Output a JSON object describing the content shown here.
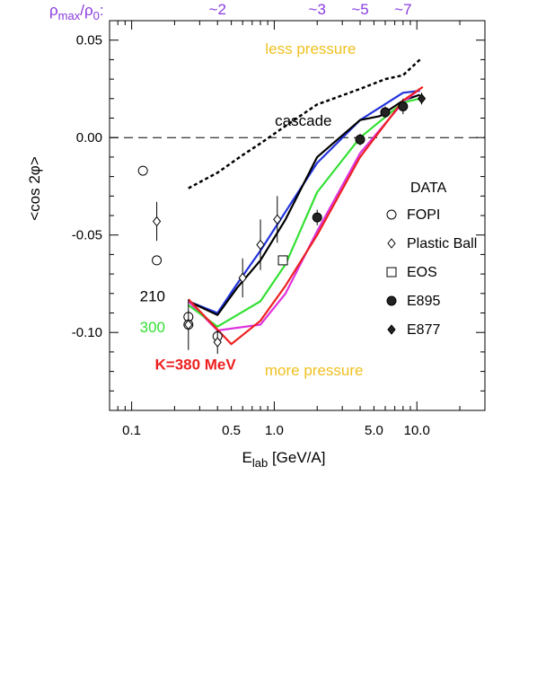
{
  "chart_data": {
    "type": "scatter",
    "ylabel": "<cos 2φ>",
    "xlabel": "E",
    "xlabel_sub": "lab",
    "xlabel_unit": " [GeV/A]",
    "x_scale": "log",
    "xlim": [
      0.07,
      30
    ],
    "ylim": [
      -0.14,
      0.06
    ],
    "x_ticks": [
      {
        "value": 0.1,
        "label": "0.1"
      },
      {
        "value": 0.5,
        "label": "0.5"
      },
      {
        "value": 1.0,
        "label": "1.0"
      },
      {
        "value": 5.0,
        "label": "5.0"
      },
      {
        "value": 10.0,
        "label": "10.0"
      }
    ],
    "y_ticks": [
      {
        "value": 0.05,
        "label": "0.05"
      },
      {
        "value": 0.0,
        "label": "0.00"
      },
      {
        "value": -0.05,
        "label": "-0.05"
      },
      {
        "value": -0.1,
        "label": "-0.10"
      }
    ],
    "top_axis": {
      "label": "ρ",
      "label_sub": "max",
      "label_mid": "/ρ",
      "label_sub2": "0",
      "label_end": ":",
      "color": "#8a3be0",
      "ticks": [
        {
          "value": 0.4,
          "label": "~2"
        },
        {
          "value": 2.0,
          "label": "~3"
        },
        {
          "value": 4.0,
          "label": "~5"
        },
        {
          "value": 8.0,
          "label": "~7"
        }
      ]
    },
    "reference_line": {
      "y": 0.0,
      "style": "dashed"
    },
    "annotations": [
      {
        "text": "less pressure",
        "x": 1.8,
        "y": 0.043,
        "color": "#f0c020"
      },
      {
        "text": "more pressure",
        "x": 1.9,
        "y": -0.122,
        "color": "#f0c020"
      },
      {
        "text": "cascade",
        "x": 1.6,
        "y": 0.006,
        "color": "#000000"
      },
      {
        "text": "210",
        "x": 0.14,
        "y": -0.084,
        "color": "#000000"
      },
      {
        "text": "300",
        "x": 0.14,
        "y": -0.1,
        "color": "#33e033"
      },
      {
        "text": "K=380 MeV",
        "x": 0.28,
        "y": -0.119,
        "color": "#ee2020"
      }
    ],
    "lines": [
      {
        "id": "cascade",
        "style": "dotted",
        "color": "#000000",
        "x": [
          0.25,
          0.4,
          0.6,
          0.8,
          1.2,
          2.0,
          4.0,
          6.0,
          8.0,
          10.5
        ],
        "y": [
          -0.026,
          -0.018,
          -0.009,
          -0.003,
          0.006,
          0.017,
          0.025,
          0.03,
          0.032,
          0.04
        ]
      },
      {
        "id": "blue",
        "style": "solid",
        "color": "#2233dd",
        "x": [
          0.25,
          0.4,
          0.55,
          0.8,
          1.2,
          2.0,
          4.0,
          8.0,
          10.5
        ],
        "y": [
          -0.084,
          -0.09,
          -0.075,
          -0.058,
          -0.038,
          -0.013,
          0.009,
          0.023,
          0.024
        ]
      },
      {
        "id": "210",
        "style": "solid",
        "color": "#000000",
        "x": [
          0.25,
          0.4,
          0.55,
          0.8,
          1.2,
          2.0,
          4.0,
          5.5,
          8.0,
          10.5
        ],
        "y": [
          -0.084,
          -0.091,
          -0.077,
          -0.063,
          -0.042,
          -0.01,
          0.009,
          0.011,
          0.019,
          0.022
        ]
      },
      {
        "id": "magenta",
        "style": "solid",
        "color": "#dd33dd",
        "x": [
          0.25,
          0.4,
          0.8,
          1.2,
          2.0,
          4.0,
          8.0,
          10.5
        ],
        "y": [
          -0.084,
          -0.099,
          -0.096,
          -0.08,
          -0.048,
          -0.008,
          0.018,
          0.025
        ]
      },
      {
        "id": "300",
        "style": "solid",
        "color": "#33e033",
        "x": [
          0.25,
          0.4,
          0.8,
          1.2,
          2.0,
          4.0,
          8.0,
          10.5
        ],
        "y": [
          -0.086,
          -0.097,
          -0.084,
          -0.065,
          -0.028,
          0.0,
          0.018,
          0.02
        ]
      },
      {
        "id": "380",
        "style": "solid",
        "color": "#ee2020",
        "x": [
          0.25,
          0.5,
          0.8,
          1.2,
          2.0,
          4.0,
          8.0,
          11.0
        ],
        "y": [
          -0.083,
          -0.106,
          -0.094,
          -0.076,
          -0.05,
          -0.01,
          0.019,
          0.026
        ]
      }
    ],
    "legend": {
      "title": "DATA",
      "placement": "right",
      "entries": [
        {
          "label": "FOPI",
          "marker": "open-circle"
        },
        {
          "label": "Plastic Ball",
          "marker": "open-diamond"
        },
        {
          "label": "EOS",
          "marker": "open-square"
        },
        {
          "label": "E895",
          "marker": "filled-circle"
        },
        {
          "label": "E877",
          "marker": "filled-diamond"
        }
      ]
    },
    "series": [
      {
        "name": "FOPI",
        "marker": "open-circle",
        "points": [
          {
            "x": 0.12,
            "y": -0.017,
            "err": 0
          },
          {
            "x": 0.15,
            "y": -0.063,
            "err": 0
          },
          {
            "x": 0.25,
            "y": -0.092,
            "err": 0.003
          },
          {
            "x": 0.25,
            "y": -0.096,
            "err": 0.003
          },
          {
            "x": 0.4,
            "y": -0.102,
            "err": 0.003
          }
        ]
      },
      {
        "name": "Plastic Ball",
        "marker": "open-diamond",
        "points": [
          {
            "x": 0.15,
            "y": -0.043,
            "err": 0.01
          },
          {
            "x": 0.25,
            "y": -0.096,
            "err": 0.013
          },
          {
            "x": 0.4,
            "y": -0.105,
            "err": 0.006
          },
          {
            "x": 0.6,
            "y": -0.072,
            "err": 0.01
          },
          {
            "x": 0.8,
            "y": -0.055,
            "err": 0.013
          },
          {
            "x": 1.05,
            "y": -0.042,
            "err": 0.012
          }
        ]
      },
      {
        "name": "EOS",
        "marker": "open-square",
        "points": [
          {
            "x": 1.15,
            "y": -0.063,
            "err": 0
          }
        ]
      },
      {
        "name": "E895",
        "marker": "filled-circle",
        "points": [
          {
            "x": 2.0,
            "y": -0.041,
            "err": 0.004
          },
          {
            "x": 4.0,
            "y": -0.001,
            "err": 0.003
          },
          {
            "x": 6.0,
            "y": 0.013,
            "err": 0.003
          },
          {
            "x": 8.0,
            "y": 0.016,
            "err": 0.004
          }
        ]
      },
      {
        "name": "E877",
        "marker": "filled-diamond",
        "points": [
          {
            "x": 10.8,
            "y": 0.02,
            "err": 0.003
          }
        ]
      }
    ]
  }
}
